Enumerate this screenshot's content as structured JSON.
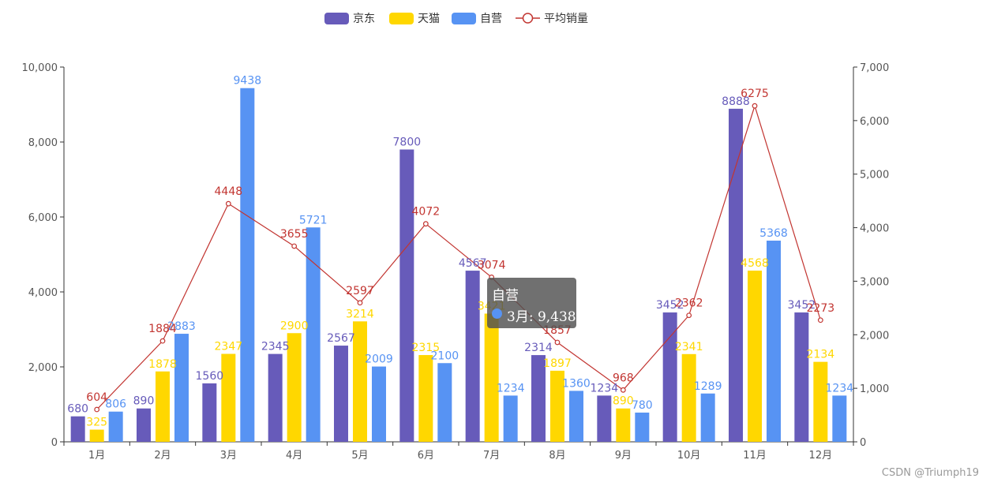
{
  "chart_data": {
    "type": "bar",
    "categories": [
      "1月",
      "2月",
      "3月",
      "4月",
      "5月",
      "6月",
      "7月",
      "8月",
      "9月",
      "10月",
      "11月",
      "12月"
    ],
    "series": [
      {
        "name": "京东",
        "type": "bar",
        "color": "#675bba",
        "axis": "left",
        "values": [
          680,
          890,
          1560,
          2345,
          2567,
          7800,
          4567,
          2314,
          1234,
          3452,
          8888,
          3452
        ]
      },
      {
        "name": "天猫",
        "type": "bar",
        "color": "#ffd700",
        "axis": "left",
        "values": [
          325,
          1878,
          2347,
          2900,
          3214,
          2315,
          3421,
          1897,
          890,
          2341,
          4568,
          2134
        ]
      },
      {
        "name": "自营",
        "type": "bar",
        "color": "#5793f3",
        "axis": "left",
        "values": [
          806,
          2883,
          9438,
          5721,
          2009,
          2100,
          1234,
          1360,
          780,
          1289,
          5368,
          1234
        ]
      },
      {
        "name": "平均销量",
        "type": "line",
        "color": "#c23531",
        "axis": "right",
        "values": [
          604,
          1884,
          4448,
          3655,
          2597,
          4072,
          3074,
          1857,
          968,
          2362,
          6275,
          2273
        ]
      }
    ],
    "y_left": {
      "min": 0,
      "max": 10000,
      "ticks": [
        "0",
        "2,000",
        "4,000",
        "6,000",
        "8,000",
        "10,000"
      ]
    },
    "y_right": {
      "min": 0,
      "max": 7000,
      "ticks": [
        "0",
        "1,000",
        "2,000",
        "3,000",
        "4,000",
        "5,000",
        "6,000",
        "7,000"
      ]
    },
    "legend_position": "top-center"
  },
  "tooltip": {
    "title": "自营",
    "value": "3月: 9,438"
  },
  "watermark": "CSDN @Triumph19"
}
